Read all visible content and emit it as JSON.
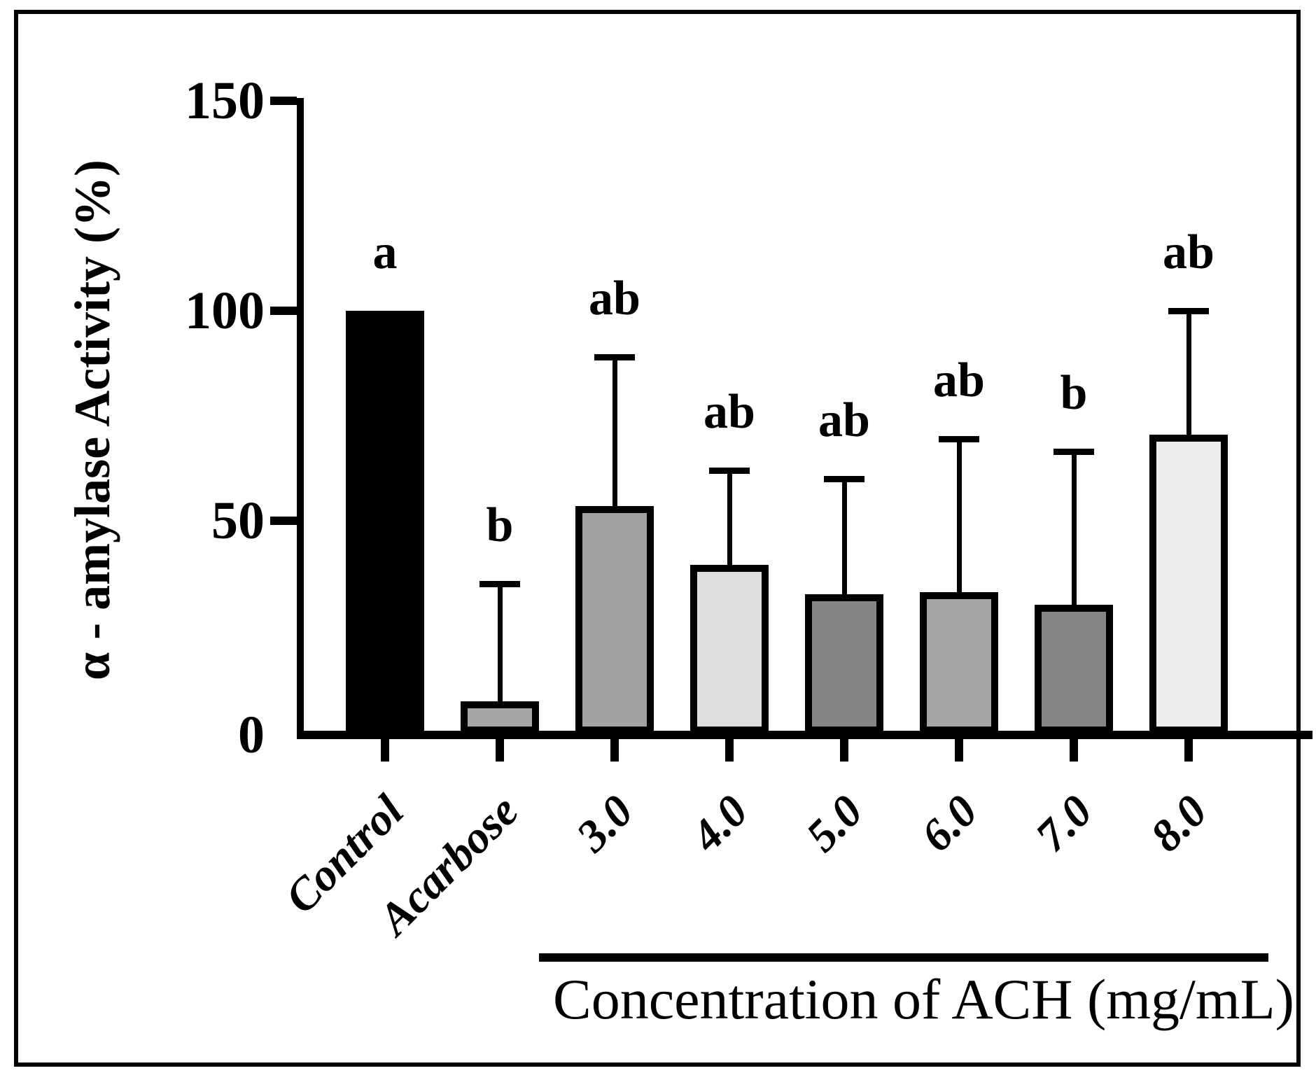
{
  "chart_data": {
    "type": "bar",
    "title": "",
    "ylabel": "α - amylase Activity (%)",
    "group_axis_label": "Concentration of ACH (mg/mL)",
    "ylim": [
      0,
      150
    ],
    "yticks": [
      0,
      50,
      100,
      150
    ],
    "ytick_labels": [
      "0",
      "50",
      "100",
      "150"
    ],
    "grid": "off",
    "legend": "none",
    "categories": [
      "Control",
      "Acarbose",
      "3.0",
      "4.0",
      "5.0",
      "6.0",
      "7.0",
      "8.0"
    ],
    "values": [
      100,
      7,
      53.5,
      39.5,
      32.5,
      33,
      30,
      70.5
    ],
    "error_upper": [
      null,
      35,
      89,
      62,
      60,
      69.5,
      66.5,
      100
    ],
    "significance_letters": [
      "a",
      "b",
      "ab",
      "ab",
      "ab",
      "ab",
      "b",
      "ab"
    ],
    "bar_colors": [
      "#000000",
      "#A5A5A5",
      "#A2A2A2",
      "#DEDEDE",
      "#858585",
      "#A4A4A4",
      "#868686",
      "#EDEDED"
    ],
    "bar_outline_color": "#000000",
    "grouped_categories_under_line": [
      "3.0",
      "4.0",
      "5.0",
      "6.0",
      "7.0",
      "8.0"
    ]
  }
}
